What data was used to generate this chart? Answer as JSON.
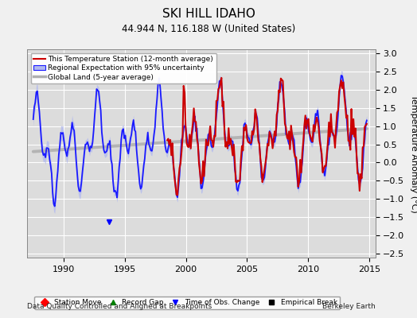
{
  "title": "SKI HILL IDAHO",
  "subtitle": "44.944 N, 116.188 W (United States)",
  "ylabel": "Temperature Anomaly (°C)",
  "xlim": [
    1987.0,
    2015.5
  ],
  "ylim": [
    -2.6,
    3.1
  ],
  "yticks": [
    -2.5,
    -2,
    -1.5,
    -1,
    -0.5,
    0,
    0.5,
    1,
    1.5,
    2,
    2.5,
    3
  ],
  "xticks": [
    1990,
    1995,
    2000,
    2005,
    2010,
    2015
  ],
  "background_color": "#dcdcdc",
  "fig_background": "#f0f0f0",
  "footer_left": "Data Quality Controlled and Aligned at Breakpoints",
  "footer_right": "Berkeley Earth",
  "legend_entries": [
    "This Temperature Station (12-month average)",
    "Regional Expectation with 95% uncertainty",
    "Global Land (5-year average)"
  ],
  "marker_legend": [
    {
      "label": "Station Move",
      "color": "red",
      "marker": "D"
    },
    {
      "label": "Record Gap",
      "color": "green",
      "marker": "^"
    },
    {
      "label": "Time of Obs. Change",
      "color": "blue",
      "marker": "v"
    },
    {
      "label": "Empirical Break",
      "color": "black",
      "marker": "s"
    }
  ],
  "obs_change_x": [
    1993.7
  ],
  "obs_change_y": [
    -1.62
  ],
  "blue_line_color": "#1a1aff",
  "blue_fill_color": "#b0b8f0",
  "red_line_color": "#cc0000",
  "gray_line_color": "#b0b0b0"
}
